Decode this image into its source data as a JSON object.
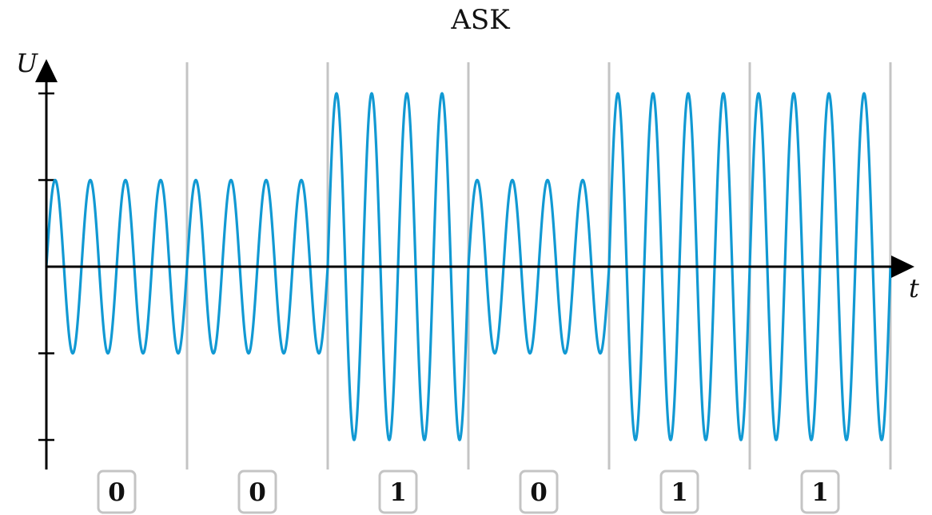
{
  "title": "ASK",
  "y_axis_label": "U",
  "x_axis_label": "t",
  "bits": [
    "0",
    "0",
    "1",
    "0",
    "1",
    "1"
  ],
  "carrier_cycles_per_bit": 4,
  "amplitude_low": 1,
  "amplitude_high": 2,
  "colors": {
    "signal": "#1199d3",
    "axis": "#000000",
    "divider": "#c4c4c4"
  }
}
